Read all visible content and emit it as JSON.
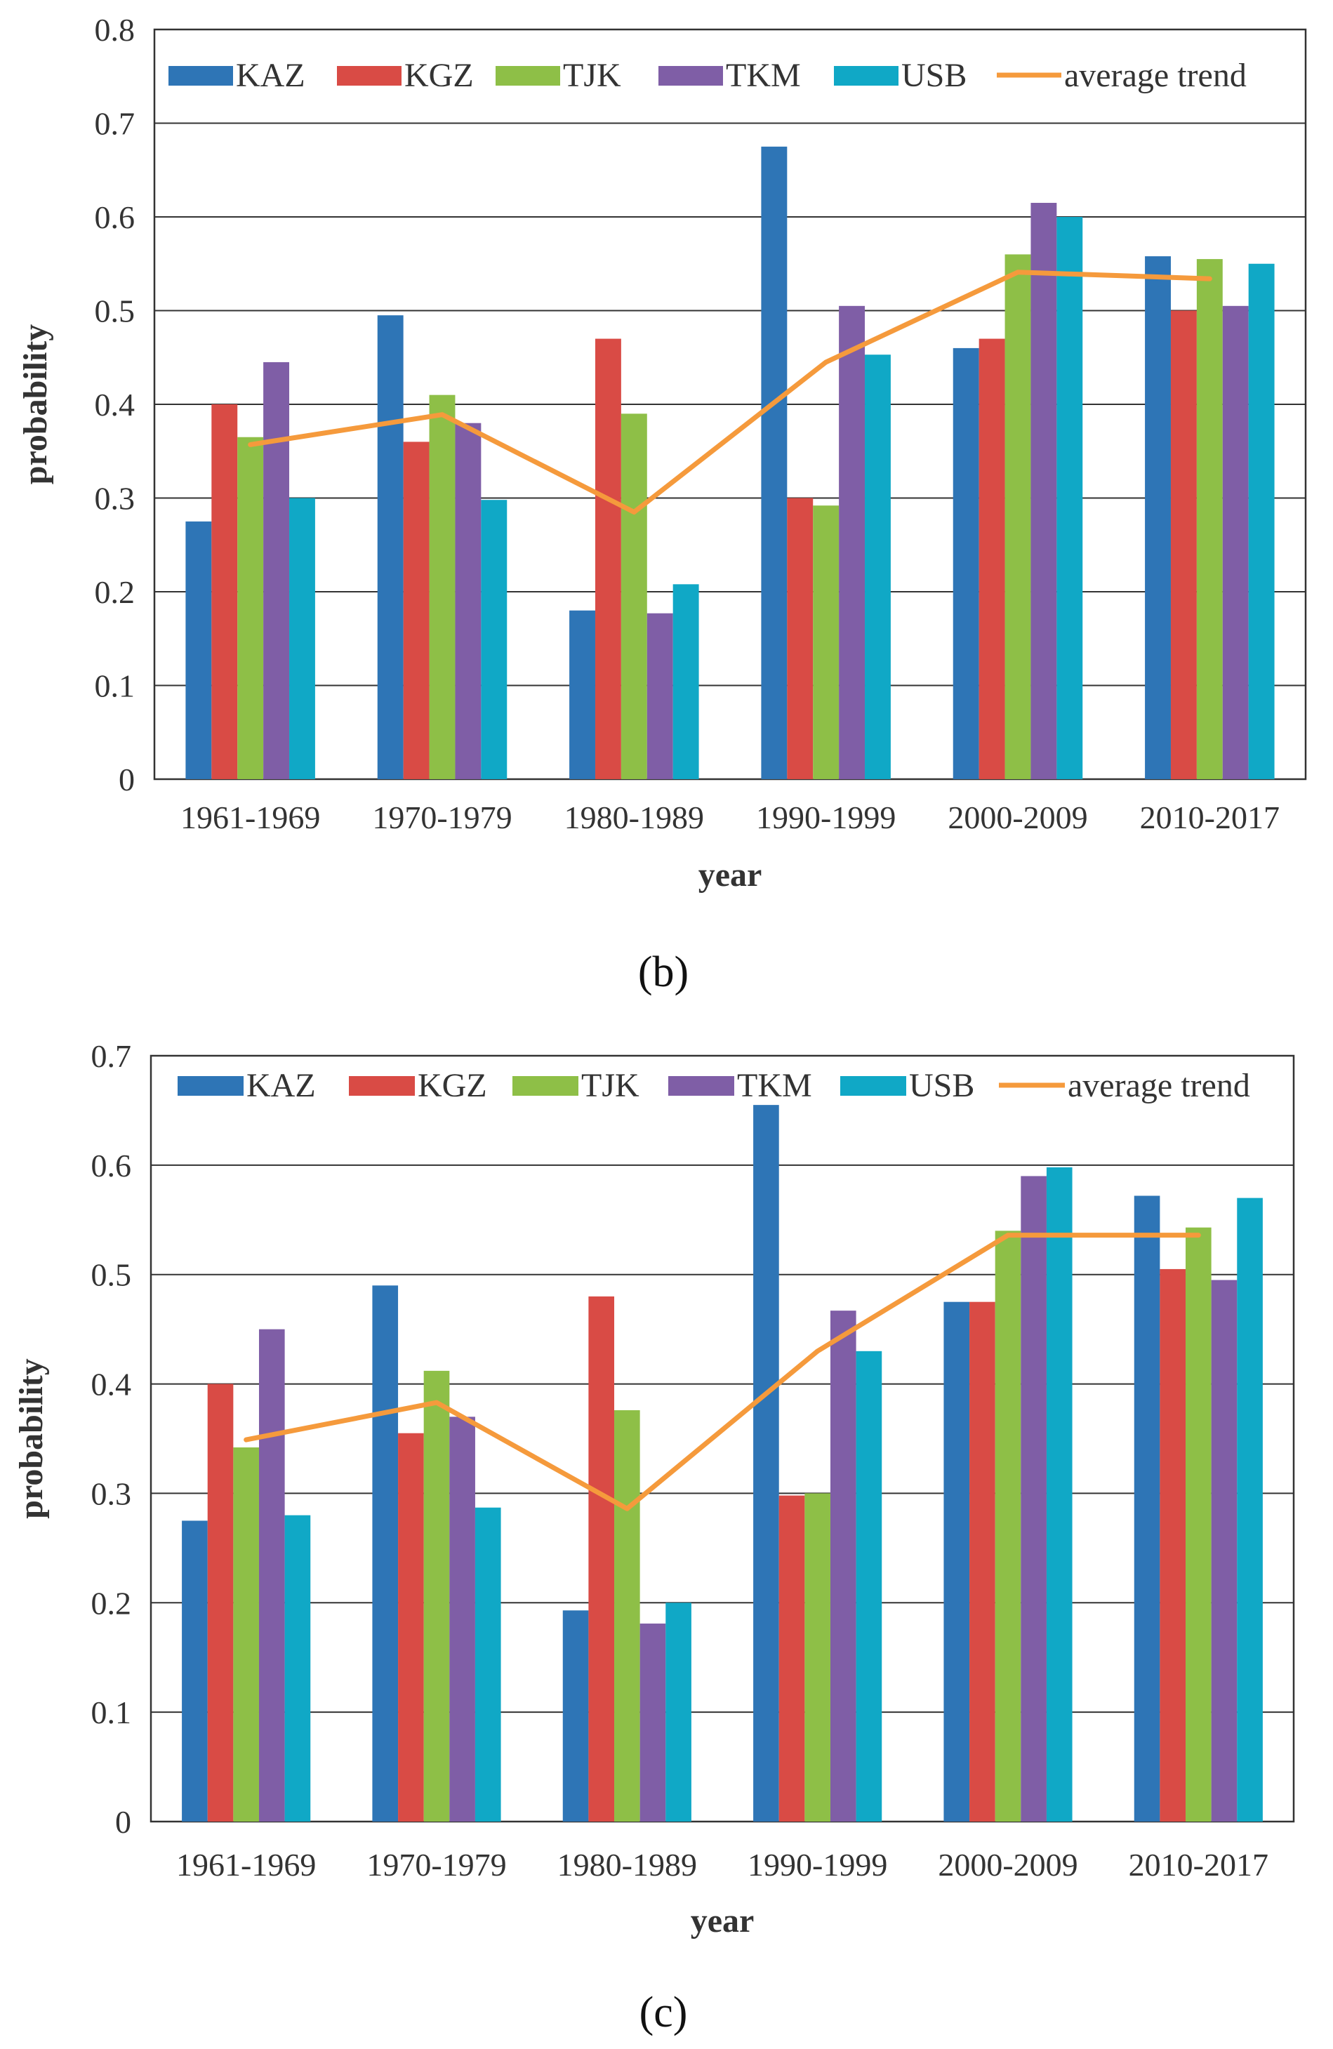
{
  "colors": {
    "KAZ": "#2e75b6",
    "KGZ": "#d94b45",
    "TJK": "#8ebf47",
    "TKM": "#7f5ea6",
    "USB": "#10a8c6",
    "average trend": "#f59a3c",
    "grid": "#333333",
    "axis_text": "#333333"
  },
  "chart_data": [
    {
      "type": "bar",
      "panel_label": "(b)",
      "title": "",
      "xlabel": "year",
      "ylabel": "probability",
      "ylim": [
        0,
        0.8
      ],
      "yticks": [
        0,
        0.1,
        0.2,
        0.3,
        0.4,
        0.5,
        0.6,
        0.7,
        0.8
      ],
      "ytick_labels": [
        "0",
        "0.1",
        "0.2",
        "0.3",
        "0.4",
        "0.5",
        "0.6",
        "0.7",
        "0.8"
      ],
      "grid": true,
      "legend_position": "top",
      "categories": [
        "1961-1969",
        "1970-1979",
        "1980-1989",
        "1990-1999",
        "2000-2009",
        "2010-2017"
      ],
      "series": [
        {
          "name": "KAZ",
          "values": [
            0.275,
            0.495,
            0.18,
            0.675,
            0.46,
            0.558
          ]
        },
        {
          "name": "KGZ",
          "values": [
            0.4,
            0.36,
            0.47,
            0.3,
            0.47,
            0.5
          ]
        },
        {
          "name": "TJK",
          "values": [
            0.365,
            0.41,
            0.39,
            0.292,
            0.56,
            0.555
          ]
        },
        {
          "name": "TKM",
          "values": [
            0.445,
            0.38,
            0.177,
            0.505,
            0.615,
            0.505
          ]
        },
        {
          "name": "USB",
          "values": [
            0.3,
            0.298,
            0.208,
            0.453,
            0.6,
            0.55
          ]
        }
      ],
      "line": {
        "name": "average trend",
        "values": [
          0.357,
          0.389,
          0.285,
          0.445,
          0.541,
          0.534
        ]
      }
    },
    {
      "type": "bar",
      "panel_label": "(c)",
      "title": "",
      "xlabel": "year",
      "ylabel": "probability",
      "ylim": [
        0,
        0.7
      ],
      "yticks": [
        0,
        0.1,
        0.2,
        0.3,
        0.4,
        0.5,
        0.6,
        0.7
      ],
      "ytick_labels": [
        "0",
        "0.1",
        "0.2",
        "0.3",
        "0.4",
        "0.5",
        "0.6",
        "0.7"
      ],
      "grid": true,
      "legend_position": "top",
      "categories": [
        "1961-1969",
        "1970-1979",
        "1980-1989",
        "1990-1999",
        "2000-2009",
        "2010-2017"
      ],
      "series": [
        {
          "name": "KAZ",
          "values": [
            0.275,
            0.49,
            0.193,
            0.655,
            0.475,
            0.572
          ]
        },
        {
          "name": "KGZ",
          "values": [
            0.4,
            0.355,
            0.48,
            0.298,
            0.475,
            0.505
          ]
        },
        {
          "name": "TJK",
          "values": [
            0.342,
            0.412,
            0.376,
            0.3,
            0.54,
            0.543
          ]
        },
        {
          "name": "TKM",
          "values": [
            0.45,
            0.37,
            0.181,
            0.467,
            0.59,
            0.495
          ]
        },
        {
          "name": "USB",
          "values": [
            0.28,
            0.287,
            0.2,
            0.43,
            0.598,
            0.57
          ]
        }
      ],
      "line": {
        "name": "average trend",
        "values": [
          0.349,
          0.383,
          0.286,
          0.43,
          0.536,
          0.536
        ]
      }
    }
  ]
}
